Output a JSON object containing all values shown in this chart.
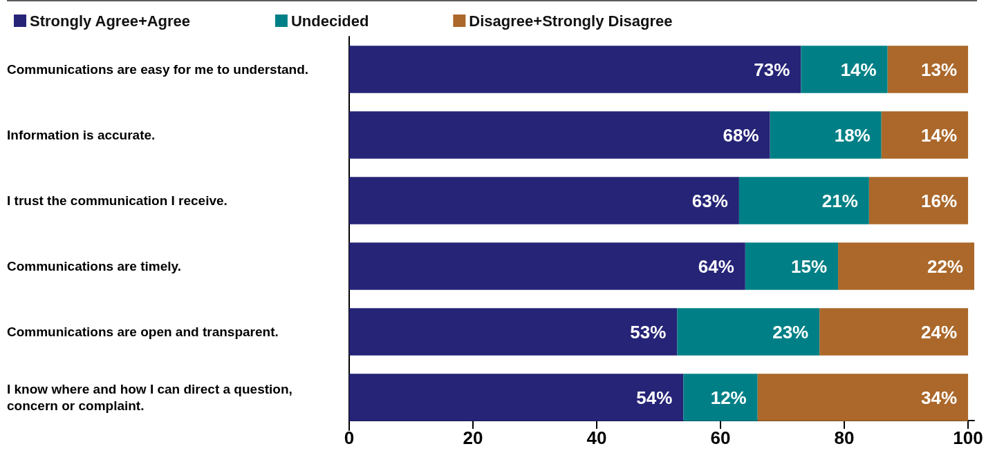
{
  "chart_data": {
    "type": "bar",
    "orientation": "horizontal",
    "stacked": true,
    "legend": "top left",
    "categories": [
      "Communications are easy for me to understand.",
      "Information is accurate.",
      "I trust the communication I receive.",
      "Communications are timely.",
      "Communications are open and transparent.",
      "I know where and how I can direct a question, concern or complaint."
    ],
    "series": [
      {
        "name": "Strongly Agree+Agree",
        "color": "#262477",
        "values": [
          73,
          68,
          63,
          64,
          53,
          54
        ],
        "value_labels": [
          "73%",
          "68%",
          "63%",
          "64%",
          "53%",
          "54%"
        ]
      },
      {
        "name": "Undecided",
        "color": "#008086",
        "values": [
          14,
          18,
          21,
          15,
          23,
          12
        ],
        "value_labels": [
          "14%",
          "18%",
          "21%",
          "15%",
          "23%",
          "12%"
        ]
      },
      {
        "name": "Disagree+Strongly Disagree",
        "color": "#ab682a",
        "values": [
          13,
          14,
          16,
          22,
          24,
          34
        ],
        "value_labels": [
          "13%",
          "14%",
          "16%",
          "22%",
          "24%",
          "34%"
        ]
      }
    ],
    "xlim": [
      0,
      101
    ],
    "xticks": [
      0,
      20,
      40,
      60,
      80,
      100
    ]
  }
}
